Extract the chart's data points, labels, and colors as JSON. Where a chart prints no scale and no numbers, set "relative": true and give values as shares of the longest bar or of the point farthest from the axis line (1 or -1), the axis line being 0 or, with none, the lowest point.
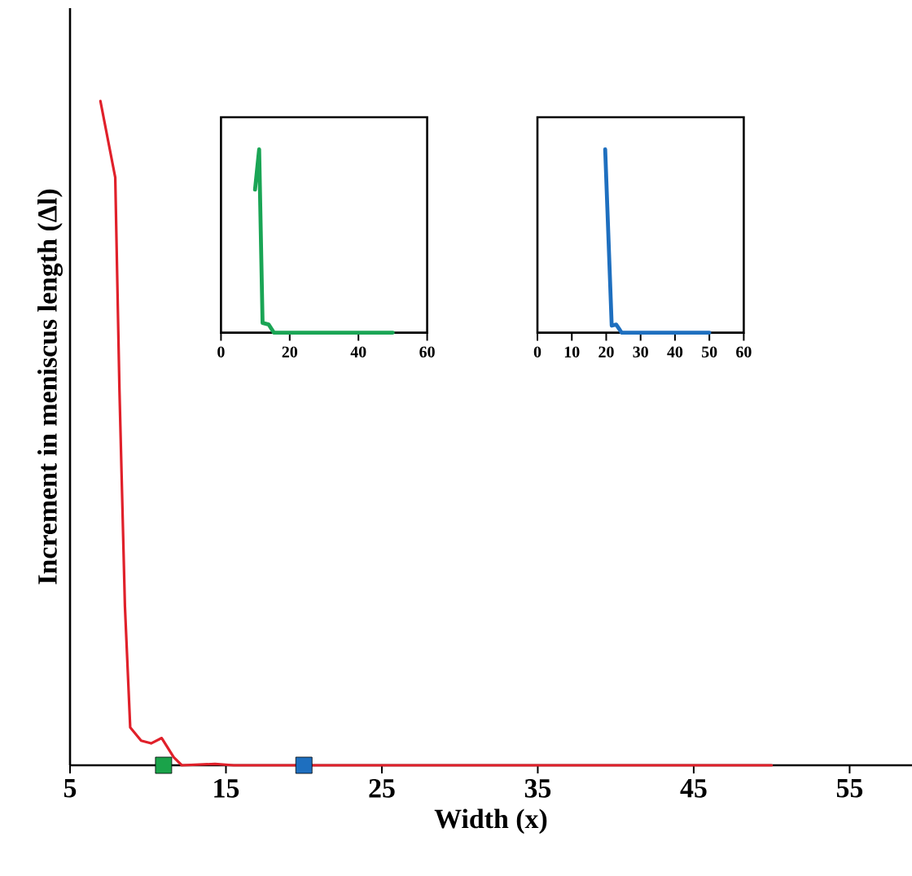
{
  "chart_data": [
    {
      "type": "line",
      "xlabel": "Width (x)",
      "ylabel": "Increment in meniscus length (Δl)",
      "relative": true,
      "xlim": [
        5,
        59
      ],
      "xticks": [
        5,
        15,
        25,
        35,
        45,
        55
      ],
      "series": [
        {
          "type": "line",
          "color": "#e0202a",
          "x": [
            6.95,
            7.9,
            8.17,
            8.52,
            8.86,
            9.56,
            10.2,
            10.88,
            11.65,
            12.17,
            14.3,
            15.5,
            50
          ],
          "values": [
            1,
            0.885,
            0.565,
            0.24,
            0.057,
            0.037,
            0.033,
            0.041,
            0.012,
            0,
            0.002,
            0,
            0
          ]
        },
        {
          "type": "scatter",
          "marker": "square",
          "color": "#1aa34a",
          "x": [
            11
          ],
          "values": [
            0
          ]
        },
        {
          "type": "scatter",
          "marker": "square",
          "color": "#1e6fbf",
          "x": [
            20
          ],
          "values": [
            0
          ]
        }
      ]
    },
    {
      "type": "line",
      "relative": true,
      "xlim": [
        0,
        60
      ],
      "xticks": [
        0,
        20,
        40,
        60
      ],
      "series": [
        {
          "color": "#1aa555",
          "x": [
            9.9,
            11.1,
            12.1,
            13.9,
            15.4,
            50
          ],
          "values": [
            0.78,
            1,
            0.053,
            0.044,
            0,
            0
          ]
        }
      ]
    },
    {
      "type": "line",
      "relative": true,
      "xlim": [
        0,
        60
      ],
      "xticks": [
        0,
        10,
        20,
        30,
        40,
        50,
        60
      ],
      "series": [
        {
          "color": "#1e6fbf",
          "x": [
            19.7,
            21.6,
            22.9,
            24.5,
            50
          ],
          "values": [
            1,
            0.038,
            0.044,
            0,
            0
          ]
        }
      ]
    }
  ]
}
